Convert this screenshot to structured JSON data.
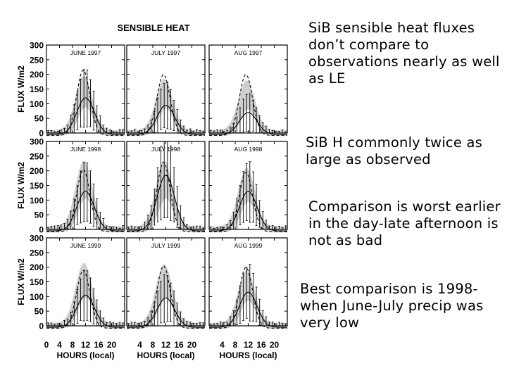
{
  "chart_data": {
    "type": "line",
    "title": "SENSIBLE HEAT",
    "ylabel": "FLUX  W/m2",
    "xlabel": "HOURS (local)",
    "ylim": [
      0,
      300
    ],
    "xlim": [
      0,
      24
    ],
    "y_ticks": [
      "300",
      "250",
      "200",
      "150",
      "100",
      "50",
      "0"
    ],
    "x_ticks": [
      "0",
      "4",
      "8",
      "12",
      "16",
      "20"
    ],
    "panels": [
      {
        "label": "JUNE 1997",
        "row": 0,
        "col": 0,
        "obs_peak": 120,
        "sib_peak": 215,
        "shade_peak": 195
      },
      {
        "label": "JULY 1997",
        "row": 0,
        "col": 1,
        "obs_peak": 95,
        "sib_peak": 200,
        "shade_peak": 185
      },
      {
        "label": "AUG 1997",
        "row": 0,
        "col": 2,
        "obs_peak": 70,
        "sib_peak": 200,
        "shade_peak": 180
      },
      {
        "label": "JUNE 1998",
        "row": 1,
        "col": 0,
        "obs_peak": 130,
        "sib_peak": 205,
        "shade_peak": 235
      },
      {
        "label": "JULY 1998",
        "row": 1,
        "col": 1,
        "obs_peak": 185,
        "sib_peak": 230,
        "shade_peak": 235
      },
      {
        "label": "AUG 1998",
        "row": 1,
        "col": 2,
        "obs_peak": 130,
        "sib_peak": 195,
        "shade_peak": 210
      },
      {
        "label": "JUNE 1999",
        "row": 2,
        "col": 0,
        "obs_peak": 105,
        "sib_peak": 190,
        "shade_peak": 215
      },
      {
        "label": "JULY 1999",
        "row": 2,
        "col": 1,
        "obs_peak": 95,
        "sib_peak": 205,
        "shade_peak": 210
      },
      {
        "label": "AUG 1999",
        "row": 2,
        "col": 2,
        "obs_peak": 115,
        "sib_peak": 200,
        "shade_peak": 190
      }
    ],
    "series": [
      {
        "name": "observed",
        "style": "solid"
      },
      {
        "name": "SiB",
        "style": "dashed"
      }
    ]
  },
  "notes": [
    "SiB sensible heat fluxes don’t compare to observations nearly as well as LE",
    "SiB H commonly twice as large as observed",
    "Comparison is worst earlier in the day-late afternoon is not as bad",
    "Best comparison is 1998-when June-July precip was very low"
  ]
}
